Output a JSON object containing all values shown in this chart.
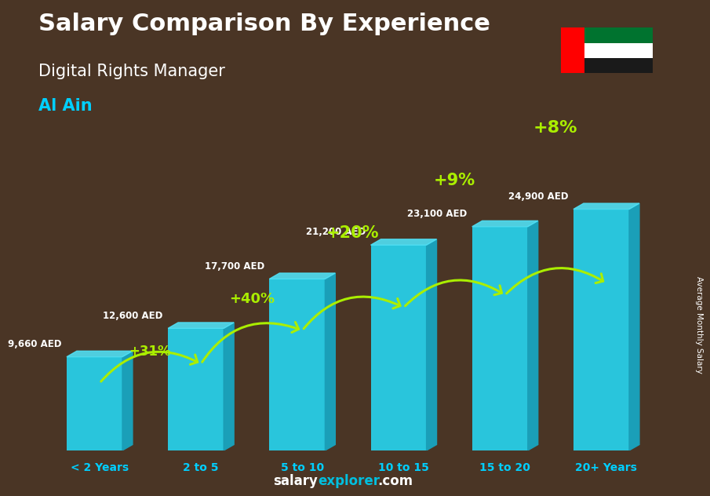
{
  "title": "Salary Comparison By Experience",
  "subtitle": "Digital Rights Manager",
  "city": "Al Ain",
  "ylabel": "Average Monthly Salary",
  "categories": [
    "< 2 Years",
    "2 to 5",
    "5 to 10",
    "10 to 15",
    "15 to 20",
    "20+ Years"
  ],
  "values": [
    9660,
    12600,
    17700,
    21200,
    23100,
    24900
  ],
  "bar_color": "#29C5DC",
  "bar_color_right": "#1A9FB8",
  "bar_color_top": "#50E0F5",
  "pct_labels": [
    "+31%",
    "+40%",
    "+20%",
    "+9%",
    "+8%"
  ],
  "salary_labels": [
    "9,660 AED",
    "12,600 AED",
    "17,700 AED",
    "21,200 AED",
    "23,100 AED",
    "24,900 AED"
  ],
  "pct_color": "#AAEE00",
  "salary_color": "#FFFFFF",
  "bg_color": "#4a3525",
  "title_color": "#FFFFFF",
  "subtitle_color": "#FFFFFF",
  "city_color": "#00CFFF",
  "footer_salary_color": "#FFFFFF",
  "footer_explorer_color": "#00BFDF",
  "ylabel_color": "#FFFFFF",
  "xlabel_color": "#00CFFF"
}
